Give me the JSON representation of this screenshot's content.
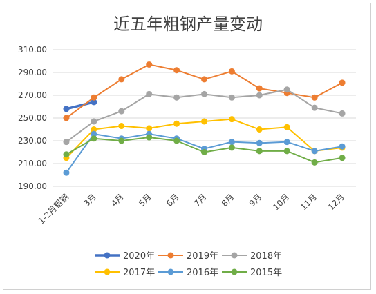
{
  "chart_data": {
    "type": "line",
    "title": "近五年粗钢产量变动",
    "categories": [
      "1-2月粗钢",
      "3月",
      "4月",
      "5月",
      "6月",
      "7月",
      "8月",
      "9月",
      "10月",
      "11月",
      "12月"
    ],
    "y_ticks": [
      "190.00",
      "210.00",
      "230.00",
      "250.00",
      "270.00",
      "290.00",
      "310.00"
    ],
    "ylim": [
      190,
      310
    ],
    "grid": true,
    "legend_position": "bottom",
    "series": [
      {
        "name": "2020年",
        "color": "#4472C4",
        "values": [
          258,
          264,
          null,
          null,
          null,
          null,
          null,
          null,
          null,
          null,
          null
        ]
      },
      {
        "name": "2019年",
        "color": "#ED7D31",
        "values": [
          250,
          268,
          284,
          297,
          292,
          284,
          291,
          276,
          272,
          268,
          281
        ]
      },
      {
        "name": "2018年",
        "color": "#A5A5A5",
        "values": [
          229,
          247,
          256,
          271,
          268,
          271,
          268,
          270,
          275,
          259,
          254
        ]
      },
      {
        "name": "2017年",
        "color": "#FFC000",
        "values": [
          215,
          240,
          243,
          241,
          245,
          247,
          249,
          240,
          242,
          221,
          224
        ]
      },
      {
        "name": "2016年",
        "color": "#5B9BD5",
        "values": [
          202,
          236,
          232,
          236,
          232,
          223,
          229,
          228,
          229,
          221,
          225
        ]
      },
      {
        "name": "2015年",
        "color": "#70AD47",
        "values": [
          218,
          232,
          230,
          233,
          230,
          220,
          224,
          221,
          221,
          211,
          215
        ]
      }
    ]
  }
}
